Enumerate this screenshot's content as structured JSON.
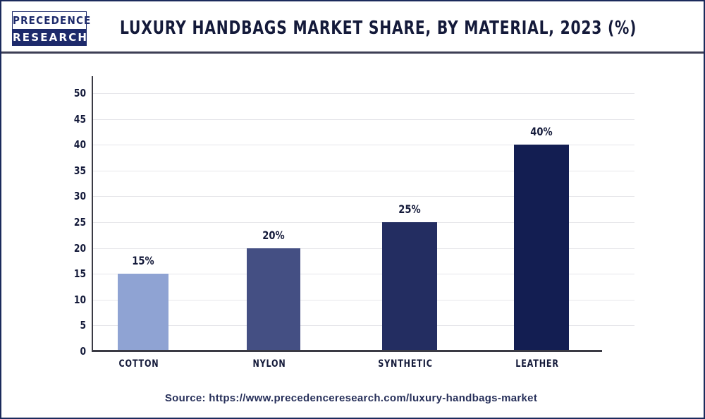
{
  "header": {
    "logo_line1": "PRECEDENCE",
    "logo_line2": "RESEARCH",
    "title": "LUXURY HANDBAGS MARKET SHARE, BY MATERIAL, 2023 (%)"
  },
  "colors": {
    "frame_border": "#1b2a5c",
    "title_text": "#141a3a",
    "logo_blue": "#1d2a6b",
    "gridline": "#e6e6ea",
    "axis": "#3a3a44"
  },
  "chart_data": {
    "type": "bar",
    "title": "LUXURY HANDBAGS MARKET SHARE, BY MATERIAL, 2023 (%)",
    "categories": [
      "COTTON",
      "NYLON",
      "SYNTHETIC",
      "LEATHER"
    ],
    "values": [
      15,
      20,
      25,
      40
    ],
    "value_labels": [
      "15%",
      "20%",
      "25%",
      "40%"
    ],
    "bar_colors": [
      "#8fa3d3",
      "#444f83",
      "#232d61",
      "#131e52"
    ],
    "xlabel": "",
    "ylabel": "",
    "ylim": [
      0,
      50
    ],
    "yticks": [
      "0",
      "5",
      "10",
      "15",
      "20",
      "25",
      "30",
      "35",
      "40",
      "45",
      "50"
    ],
    "grid": true,
    "legend": "none"
  },
  "footer": {
    "source": "Source: https://www.precedenceresearch.com/luxury-handbags-market"
  }
}
